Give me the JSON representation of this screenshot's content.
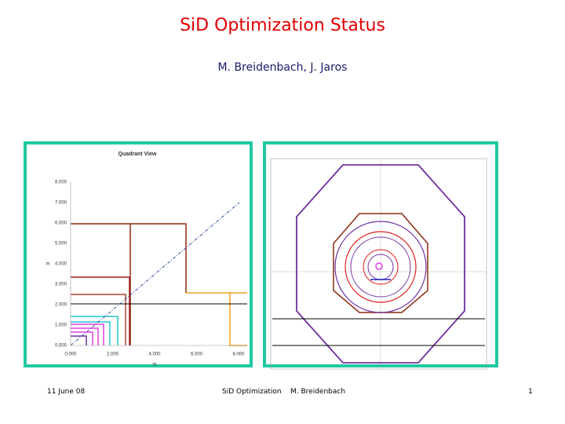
{
  "slide": {
    "title": "SiD Optimization Status",
    "authors": "M. Breidenbach, J. Jaros"
  },
  "figures": {
    "left": {
      "title": "Quadrant View",
      "y_label": "m",
      "x_label": "m",
      "y_ticks": [
        "0.000",
        "1.000",
        "2.000",
        "3.000",
        "4.000",
        "5.000",
        "6.000",
        "7.000",
        "8.000"
      ],
      "x_ticks": [
        "0.000",
        "2.000",
        "4.000",
        "6.000",
        "8.000"
      ]
    }
  },
  "footer": {
    "date": "11 June 08",
    "topic": "SiD Optimization",
    "author": "M. Breidenbach",
    "page": "1"
  }
}
